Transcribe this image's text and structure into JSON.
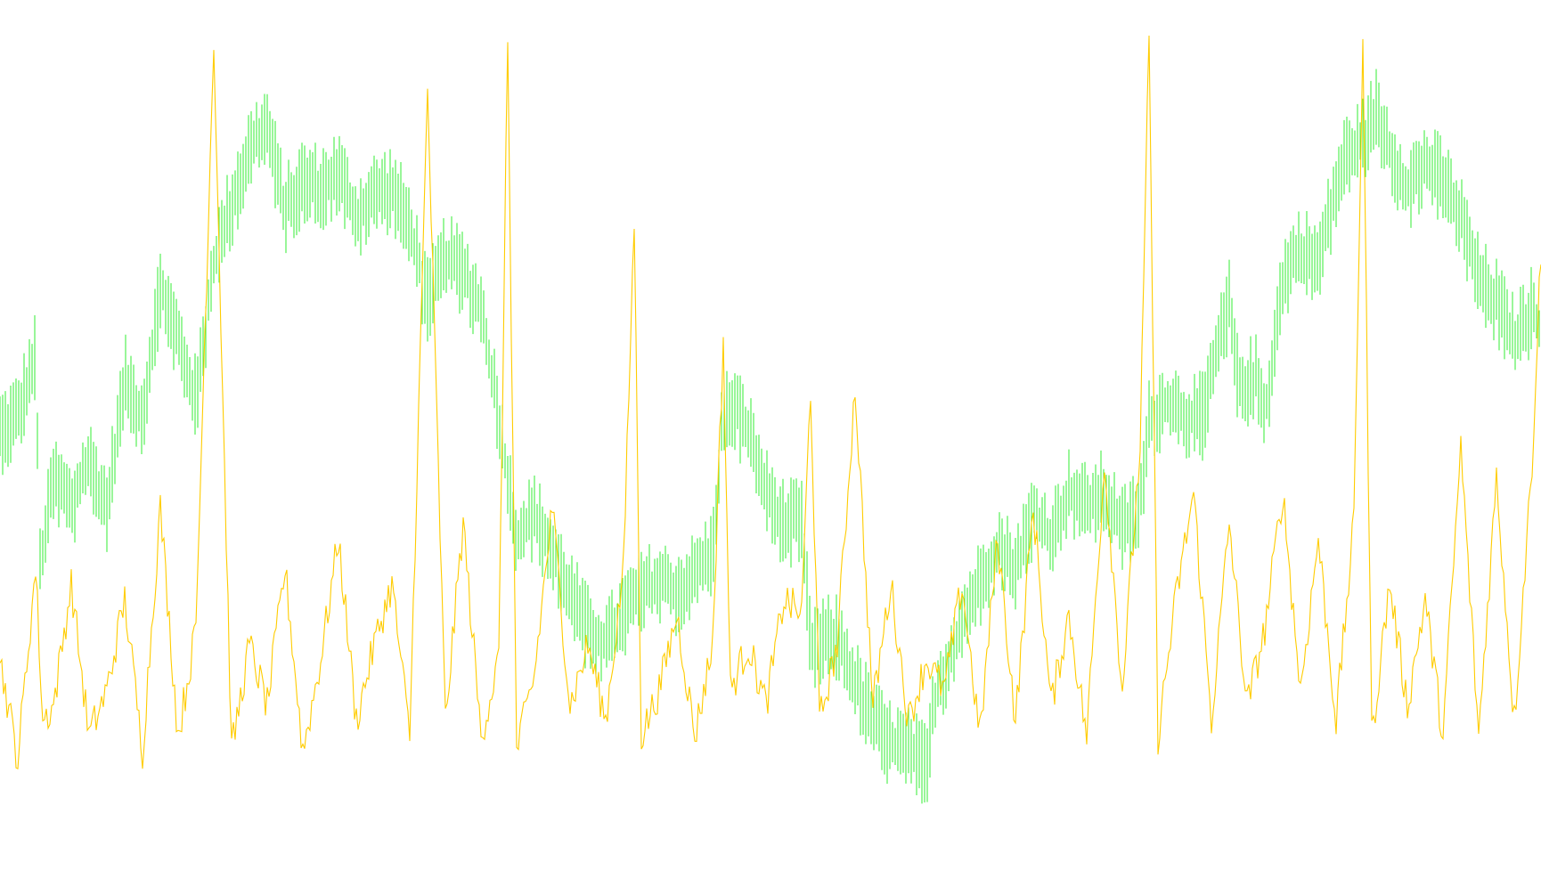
{
  "chart_data": {
    "type": "line",
    "title": "",
    "xlabel": "",
    "ylabel": "",
    "grid": false,
    "legend": "none",
    "ylim": [
      0,
      100
    ],
    "x_range": [
      0,
      1730
    ],
    "series": [
      {
        "colour": "#33ee33",
        "style": "bars",
        "anchors": [
          [
            0,
            48
          ],
          [
            20,
            50
          ],
          [
            40,
            58
          ],
          [
            45,
            30
          ],
          [
            60,
            42
          ],
          [
            80,
            38
          ],
          [
            100,
            44
          ],
          [
            120,
            38
          ],
          [
            140,
            55
          ],
          [
            160,
            50
          ],
          [
            180,
            67
          ],
          [
            200,
            60
          ],
          [
            220,
            52
          ],
          [
            240,
            70
          ],
          [
            260,
            78
          ],
          [
            280,
            85
          ],
          [
            300,
            88
          ],
          [
            320,
            77
          ],
          [
            340,
            81
          ],
          [
            360,
            80
          ],
          [
            380,
            82
          ],
          [
            400,
            76
          ],
          [
            420,
            79
          ],
          [
            440,
            80
          ],
          [
            460,
            75
          ],
          [
            480,
            65
          ],
          [
            500,
            71
          ],
          [
            520,
            69
          ],
          [
            540,
            64
          ],
          [
            560,
            50
          ],
          [
            580,
            34
          ],
          [
            600,
            37
          ],
          [
            620,
            32
          ],
          [
            640,
            27
          ],
          [
            660,
            22
          ],
          [
            680,
            20
          ],
          [
            700,
            24
          ],
          [
            720,
            27
          ],
          [
            740,
            28
          ],
          [
            760,
            27
          ],
          [
            780,
            29
          ],
          [
            800,
            32
          ],
          [
            810,
            48
          ],
          [
            820,
            52
          ],
          [
            840,
            48
          ],
          [
            860,
            40
          ],
          [
            880,
            36
          ],
          [
            900,
            36
          ],
          [
            910,
            20
          ],
          [
            940,
            21
          ],
          [
            960,
            15
          ],
          [
            980,
            10
          ],
          [
            1000,
            7
          ],
          [
            1020,
            6
          ],
          [
            1040,
            4
          ],
          [
            1050,
            13
          ],
          [
            1080,
            23
          ],
          [
            1100,
            28
          ],
          [
            1120,
            33
          ],
          [
            1140,
            30
          ],
          [
            1160,
            37
          ],
          [
            1180,
            34
          ],
          [
            1200,
            40
          ],
          [
            1220,
            38
          ],
          [
            1240,
            40
          ],
          [
            1260,
            35
          ],
          [
            1280,
            38
          ],
          [
            1290,
            49
          ],
          [
            1310,
            52
          ],
          [
            1330,
            50
          ],
          [
            1350,
            50
          ],
          [
            1370,
            60
          ],
          [
            1380,
            65
          ],
          [
            1390,
            54
          ],
          [
            1410,
            55
          ],
          [
            1420,
            50
          ],
          [
            1440,
            68
          ],
          [
            1460,
            72
          ],
          [
            1480,
            70
          ],
          [
            1500,
            80
          ],
          [
            1510,
            84
          ],
          [
            1530,
            86
          ],
          [
            1545,
            90
          ],
          [
            1560,
            85
          ],
          [
            1580,
            80
          ],
          [
            1600,
            83
          ],
          [
            1620,
            81
          ],
          [
            1640,
            76
          ],
          [
            1660,
            68
          ],
          [
            1680,
            65
          ],
          [
            1700,
            60
          ],
          [
            1720,
            64
          ],
          [
            1730,
            61
          ]
        ]
      },
      {
        "colour": "#ffcc00",
        "style": "line",
        "anchors": [
          [
            0,
            18
          ],
          [
            20,
            5
          ],
          [
            40,
            30
          ],
          [
            48,
            10
          ],
          [
            60,
            12
          ],
          [
            80,
            28
          ],
          [
            100,
            8
          ],
          [
            120,
            14
          ],
          [
            140,
            26
          ],
          [
            160,
            6
          ],
          [
            180,
            38
          ],
          [
            200,
            8
          ],
          [
            220,
            22
          ],
          [
            240,
            100
          ],
          [
            260,
            6
          ],
          [
            280,
            20
          ],
          [
            300,
            12
          ],
          [
            320,
            30
          ],
          [
            340,
            6
          ],
          [
            360,
            18
          ],
          [
            380,
            34
          ],
          [
            400,
            10
          ],
          [
            420,
            20
          ],
          [
            440,
            28
          ],
          [
            460,
            8
          ],
          [
            480,
            93
          ],
          [
            500,
            10
          ],
          [
            520,
            36
          ],
          [
            540,
            8
          ],
          [
            560,
            18
          ],
          [
            570,
            100
          ],
          [
            580,
            6
          ],
          [
            600,
            16
          ],
          [
            620,
            38
          ],
          [
            640,
            12
          ],
          [
            660,
            20
          ],
          [
            680,
            10
          ],
          [
            700,
            30
          ],
          [
            712,
            76
          ],
          [
            720,
            8
          ],
          [
            740,
            14
          ],
          [
            760,
            24
          ],
          [
            780,
            8
          ],
          [
            800,
            20
          ],
          [
            812,
            60
          ],
          [
            820,
            14
          ],
          [
            840,
            20
          ],
          [
            860,
            12
          ],
          [
            880,
            26
          ],
          [
            900,
            24
          ],
          [
            910,
            54
          ],
          [
            920,
            10
          ],
          [
            940,
            20
          ],
          [
            960,
            54
          ],
          [
            980,
            12
          ],
          [
            1000,
            28
          ],
          [
            1020,
            10
          ],
          [
            1040,
            18
          ],
          [
            1060,
            14
          ],
          [
            1080,
            28
          ],
          [
            1100,
            8
          ],
          [
            1120,
            34
          ],
          [
            1140,
            10
          ],
          [
            1160,
            38
          ],
          [
            1180,
            12
          ],
          [
            1200,
            24
          ],
          [
            1220,
            8
          ],
          [
            1240,
            44
          ],
          [
            1260,
            14
          ],
          [
            1280,
            46
          ],
          [
            1290,
            100
          ],
          [
            1300,
            8
          ],
          [
            1320,
            26
          ],
          [
            1340,
            40
          ],
          [
            1360,
            10
          ],
          [
            1380,
            36
          ],
          [
            1400,
            12
          ],
          [
            1420,
            22
          ],
          [
            1440,
            40
          ],
          [
            1460,
            14
          ],
          [
            1480,
            34
          ],
          [
            1500,
            10
          ],
          [
            1520,
            36
          ],
          [
            1530,
            100
          ],
          [
            1540,
            8
          ],
          [
            1560,
            28
          ],
          [
            1580,
            12
          ],
          [
            1600,
            26
          ],
          [
            1620,
            8
          ],
          [
            1640,
            46
          ],
          [
            1660,
            8
          ],
          [
            1680,
            42
          ],
          [
            1700,
            10
          ],
          [
            1720,
            44
          ],
          [
            1730,
            72
          ]
        ]
      }
    ]
  }
}
